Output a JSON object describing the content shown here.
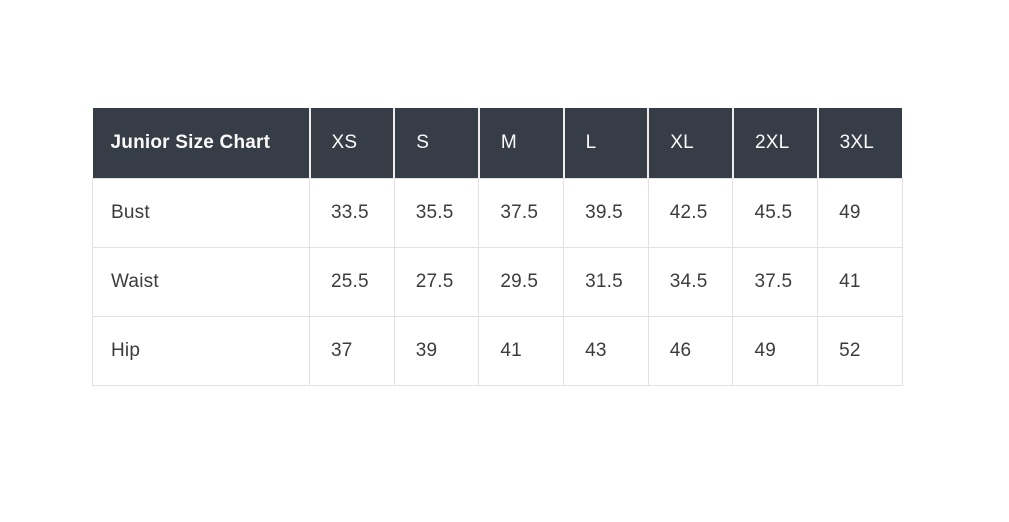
{
  "page": {
    "background_color": "#ffffff"
  },
  "chart_data": {
    "type": "table",
    "title": "Junior Size Chart",
    "columns": [
      "Junior Size Chart",
      "XS",
      "S",
      "M",
      "L",
      "XL",
      "2XL",
      "3XL"
    ],
    "rows": [
      {
        "label": "Bust",
        "values": [
          "33.5",
          "35.5",
          "37.5",
          "39.5",
          "42.5",
          "45.5",
          "49"
        ]
      },
      {
        "label": "Waist",
        "values": [
          "25.5",
          "27.5",
          "29.5",
          "31.5",
          "34.5",
          "37.5",
          "41"
        ]
      },
      {
        "label": "Hip",
        "values": [
          "37",
          "39",
          "41",
          "43",
          "46",
          "49",
          "52"
        ]
      }
    ],
    "layout_hints": {
      "header_background": "#373d46",
      "header_text_color": "#fafafa",
      "body_text_color": "#3c3c3c",
      "border_color": "#e2e2e2",
      "header_separator_color": "#ededed",
      "grid": "on",
      "legend": "none"
    }
  }
}
